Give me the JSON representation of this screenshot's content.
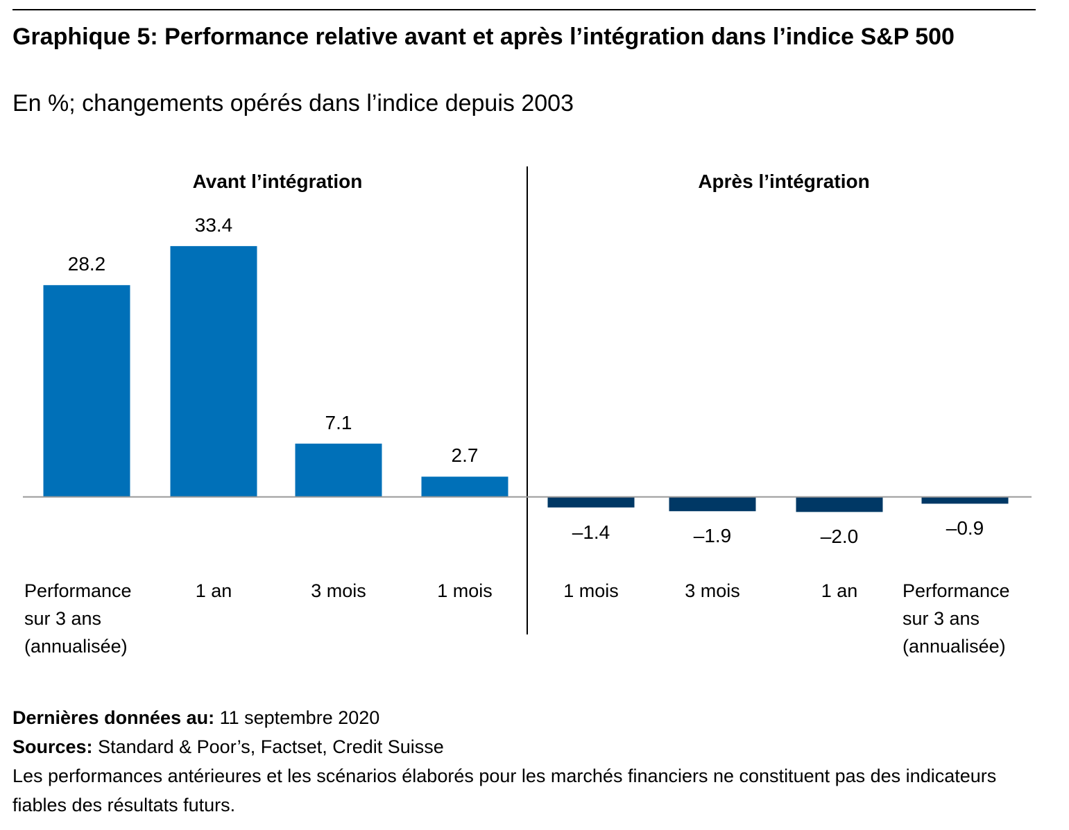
{
  "chart_data": {
    "type": "bar",
    "title": "Graphique 5:  Performance relative avant et après l’intégration dans l’indice S&P 500",
    "subtitle": "En %; changements opérés dans l’indice depuis 2003",
    "ylim": [
      -4,
      36.9
    ],
    "groups": [
      {
        "name": "Avant l’intégration",
        "color": "#0070b8",
        "categories": [
          "Performance sur 3 ans (annualisée)",
          "1 an",
          "3 mois",
          "1 mois"
        ],
        "values": [
          28.2,
          33.4,
          7.1,
          2.7
        ]
      },
      {
        "name": "Après l’intégration",
        "color": "#003865",
        "categories": [
          "1 mois",
          "3 mois",
          "1 an",
          "Performance sur 3 ans (annualisée)"
        ],
        "values": [
          -1.4,
          -1.9,
          -2.0,
          -0.9
        ],
        "value_labels": [
          "–1.4",
          "–1.9",
          "–2.0",
          "–0.9"
        ]
      }
    ],
    "footer": {
      "last_data_label": "Dernières données au:",
      "last_data": "11 septembre 2020",
      "sources_label": "Sources:",
      "sources": "Standard & Poor’s, Factset, Credit Suisse",
      "disclaimer": "Les performances antérieures et les scénarios élaborés pour les marchés financiers ne constituent pas des indicateurs fiables des résultats futurs."
    }
  }
}
